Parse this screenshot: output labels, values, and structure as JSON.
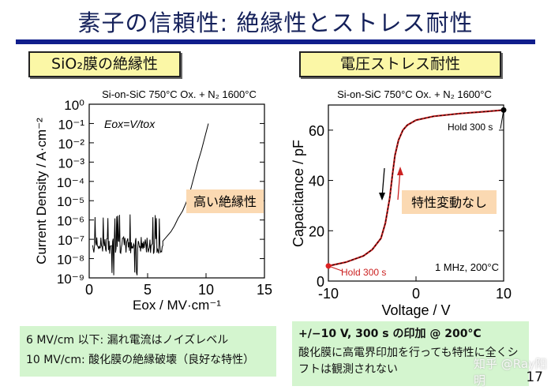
{
  "slide": {
    "title": "素子の信頼性: 絶縁性とストレス耐性",
    "page_number": "17",
    "watermark": "知乎 @Ray阳明"
  },
  "left_panel": {
    "heading": "SiO₂膜の絶縁性",
    "notes": [
      "6 MV/cm 以下: 漏れ電流はノイズレベル",
      "10 MV/cm: 酸化膜の絶縁破壊（良好な特性）"
    ]
  },
  "right_panel": {
    "heading": "電圧ストレス耐性",
    "notes": [
      "+/−10 V, 300 s の印加 @ 200°C",
      "酸化膜に高電界印加を行っても特性に全くシフトは観測されない"
    ]
  },
  "chart_data": [
    {
      "type": "line",
      "title": "Si-on-SiC 750°C Ox. + N₂ 1600°C",
      "xlabel": "Eox / MV·cm⁻¹",
      "ylabel": "Current Density / A·cm⁻²",
      "xlim": [
        0,
        15
      ],
      "ylim": [
        1e-09,
        1
      ],
      "yscale": "log",
      "xticks": [
        "0",
        "5",
        "10",
        "15"
      ],
      "yticks": [
        "10⁰",
        "10⁻¹",
        "10⁻²",
        "10⁻³",
        "10⁻⁴",
        "10⁻⁵",
        "10⁻⁶",
        "10⁻⁷",
        "10⁻⁸",
        "10⁻⁹"
      ],
      "annotations": [
        "Eox=V/tox",
        "高い絶縁性"
      ],
      "noise_floor": {
        "x_range": [
          0.3,
          6.3
        ],
        "typical": 5e-08
      },
      "x": [
        6.3,
        6.6,
        7.0,
        7.3,
        7.6,
        8.0,
        8.3,
        8.6,
        9.0,
        9.3,
        9.6,
        9.9,
        10.2
      ],
      "y": [
        8e-08,
        1.3e-07,
        2.5e-07,
        5e-07,
        1.2e-06,
        3e-06,
        8e-06,
        2.5e-05,
        0.0002,
        0.001,
        0.004,
        0.02,
        0.1
      ],
      "color": "#000000"
    },
    {
      "type": "line",
      "title": "Si-on-SiC 750°C Ox. + N₂ 1600°C",
      "xlabel": "Voltage / V",
      "ylabel": "Capacitance / pF",
      "xlim": [
        -10,
        10
      ],
      "ylim": [
        0,
        70
      ],
      "xticks": [
        "-10",
        "0",
        "10"
      ],
      "yticks": [
        "0",
        "20",
        "40",
        "60"
      ],
      "annotations": [
        "Hold 300 s",
        "Hold 300 s",
        "1 MHz, 200°C",
        "特性変動なし"
      ],
      "x": [
        -10,
        -8,
        -6,
        -5,
        -4,
        -3.5,
        -3,
        -2.7,
        -2.4,
        -2,
        -1.5,
        -1,
        0,
        2,
        5,
        8,
        10
      ],
      "y": [
        6,
        7.5,
        10,
        12.5,
        17,
        23,
        33,
        42,
        50,
        56,
        60,
        62,
        64,
        65.5,
        66.6,
        67.4,
        68
      ],
      "series_colors": {
        "sweep_down": "#000000",
        "sweep_up": "#cc2222"
      }
    }
  ]
}
